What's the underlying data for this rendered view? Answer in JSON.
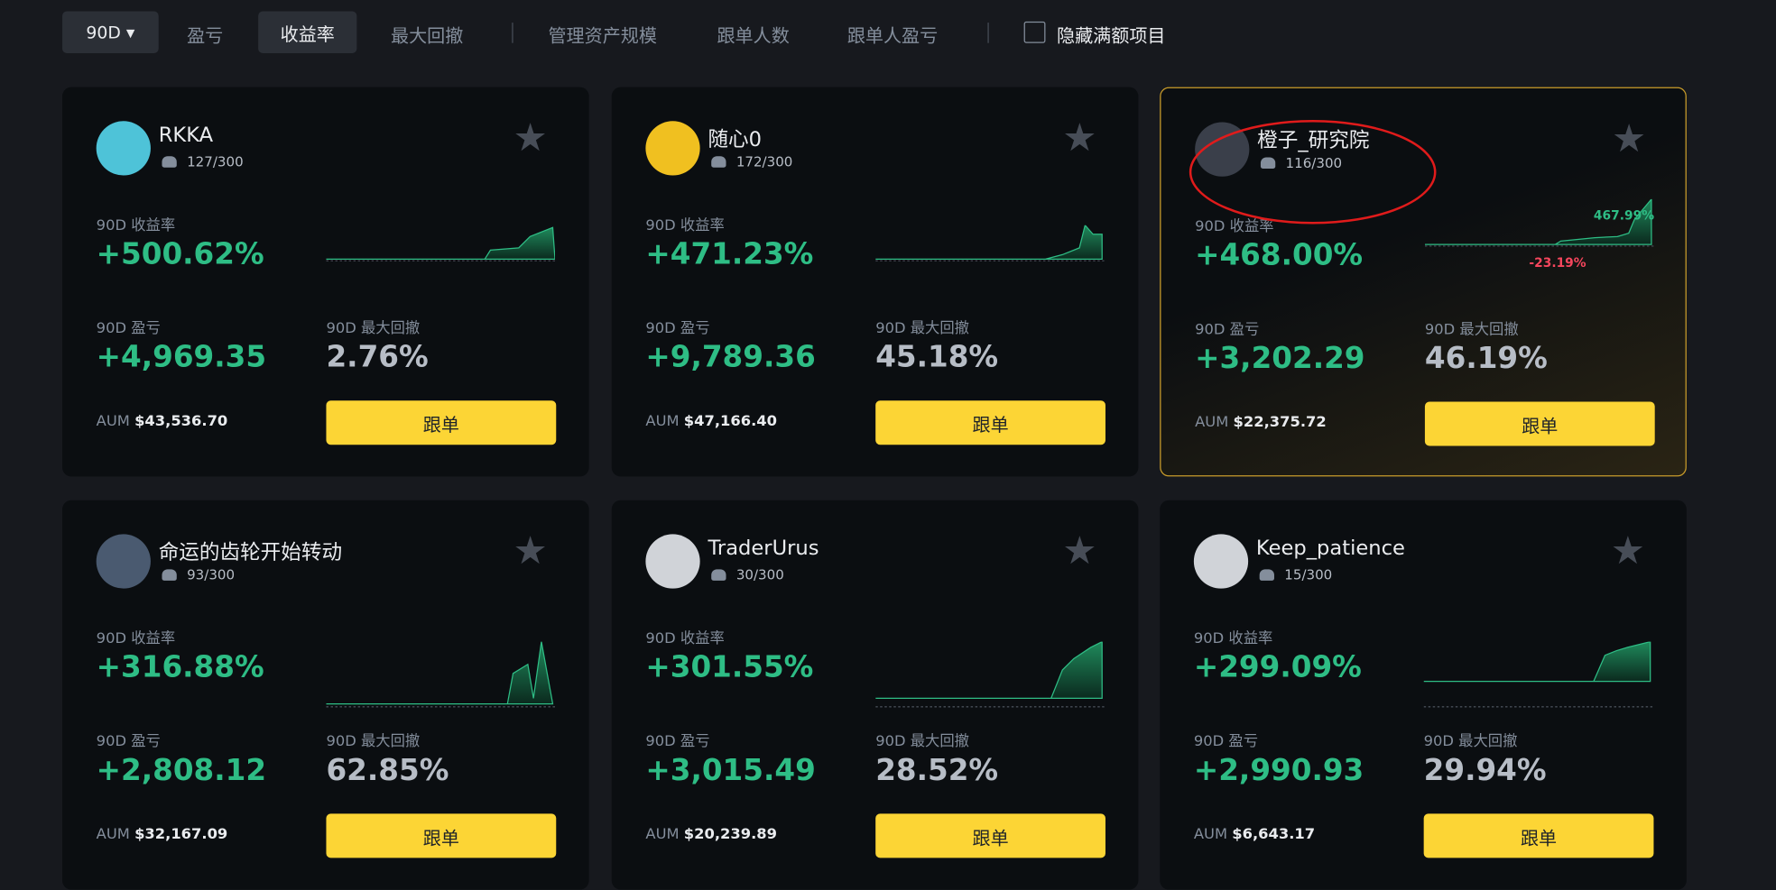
{
  "toolbar": {
    "period": "90D",
    "filters": [
      "盈亏",
      "收益率",
      "最大回撤",
      "管理资产规模",
      "跟单人数",
      "跟单人盈亏"
    ],
    "active": "收益率",
    "hide_full": "隐藏满额项目"
  },
  "cards": [
    {
      "name": "RKKA",
      "followers": "127/300",
      "roi_label": "90D 收益率",
      "roi": "+500.62%",
      "pnl_label": "90D 盈亏",
      "pnl": "+4,969.35",
      "mdd_label": "90D 最大回撤",
      "mdd": "2.76%",
      "aum_label": "AUM",
      "aum": "$43,536.70",
      "button": "跟单"
    },
    {
      "name": "随心0",
      "followers": "172/300",
      "roi_label": "90D 收益率",
      "roi": "+471.23%",
      "pnl_label": "90D 盈亏",
      "pnl": "+9,789.36",
      "mdd_label": "90D 最大回撤",
      "mdd": "45.18%",
      "aum_label": "AUM",
      "aum": "$47,166.40",
      "button": "跟单"
    },
    {
      "name": "橙子_研究院",
      "followers": "116/300",
      "roi_label": "90D 收益率",
      "roi": "+468.00%",
      "pnl_label": "90D 盈亏",
      "pnl": "+3,202.29",
      "mdd_label": "90D 最大回撤",
      "mdd": "46.19%",
      "aum_label": "AUM",
      "aum": "$22,375.72",
      "button": "跟单",
      "chart_high": "467.99%",
      "chart_low": "-23.19%"
    },
    {
      "name": "命运的齿轮开始转动",
      "followers": "93/300",
      "roi_label": "90D 收益率",
      "roi": "+316.88%",
      "pnl_label": "90D 盈亏",
      "pnl": "+2,808.12",
      "mdd_label": "90D 最大回撤",
      "mdd": "62.85%",
      "aum_label": "AUM",
      "aum": "$32,167.09",
      "button": "跟单"
    },
    {
      "name": "TraderUrus",
      "followers": "30/300",
      "roi_label": "90D 收益率",
      "roi": "+301.55%",
      "pnl_label": "90D 盈亏",
      "pnl": "+3,015.49",
      "mdd_label": "90D 最大回撤",
      "mdd": "28.52%",
      "aum_label": "AUM",
      "aum": "$20,239.89",
      "button": "跟单"
    },
    {
      "name": "Keep_patience",
      "followers": "15/300",
      "roi_label": "90D 收益率",
      "roi": "+299.09%",
      "pnl_label": "90D 盈亏",
      "pnl": "+2,990.93",
      "mdd_label": "90D 最大回撤",
      "mdd": "29.94%",
      "aum_label": "AUM",
      "aum": "$6,643.17",
      "button": "跟单"
    }
  ]
}
